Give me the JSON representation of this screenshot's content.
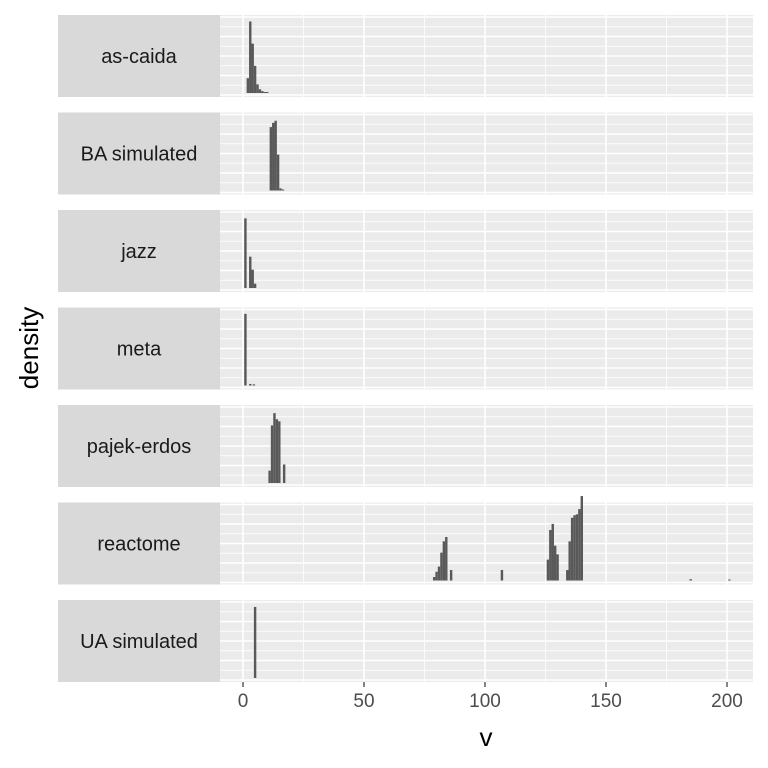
{
  "chart_data": {
    "type": "bar",
    "xlabel": "v",
    "ylabel": "density",
    "xlim": [
      -9,
      211
    ],
    "xticks": [
      0,
      50,
      100,
      150,
      200
    ],
    "panel_background": "#ebebeb",
    "strip_background": "#d9d9d9",
    "bar_color": "#595959",
    "facets": [
      {
        "label": "as-caida",
        "ymax": 0.6,
        "bins": [
          {
            "x": 2,
            "y": 0.12
          },
          {
            "x": 3,
            "y": 0.58
          },
          {
            "x": 4,
            "y": 0.4
          },
          {
            "x": 5,
            "y": 0.22
          },
          {
            "x": 6,
            "y": 0.07
          },
          {
            "x": 7,
            "y": 0.03
          },
          {
            "x": 8,
            "y": 0.015
          },
          {
            "x": 9,
            "y": 0.008
          },
          {
            "x": 10,
            "y": 0.005
          }
        ]
      },
      {
        "label": "BA simulated",
        "ymax": 0.35,
        "bins": [
          {
            "x": 11.5,
            "y": 0.3
          },
          {
            "x": 12.5,
            "y": 0.32
          },
          {
            "x": 13.5,
            "y": 0.33
          },
          {
            "x": 14.5,
            "y": 0.17
          },
          {
            "x": 15.5,
            "y": 0.01
          },
          {
            "x": 16.5,
            "y": 0.005
          }
        ]
      },
      {
        "label": "jazz",
        "ymax": 0.85,
        "bins": [
          {
            "x": 1,
            "y": 0.8
          },
          {
            "x": 3,
            "y": 0.36
          },
          {
            "x": 4,
            "y": 0.21
          },
          {
            "x": 5,
            "y": 0.05
          }
        ]
      },
      {
        "label": "meta",
        "ymax": 0.95,
        "bins": [
          {
            "x": 1,
            "y": 0.92
          },
          {
            "x": 3,
            "y": 0.02
          },
          {
            "x": 4.5,
            "y": 0.015
          }
        ]
      },
      {
        "label": "pajek-erdos",
        "ymax": 0.36,
        "bins": [
          {
            "x": 11,
            "y": 0.06
          },
          {
            "x": 12,
            "y": 0.28
          },
          {
            "x": 13,
            "y": 0.34
          },
          {
            "x": 14,
            "y": 0.31
          },
          {
            "x": 15,
            "y": 0.3
          },
          {
            "x": 17,
            "y": 0.09
          }
        ]
      },
      {
        "label": "reactome",
        "ymax": 0.085,
        "bins": [
          {
            "x": 79,
            "y": 0.004
          },
          {
            "x": 80,
            "y": 0.01
          },
          {
            "x": 81,
            "y": 0.016
          },
          {
            "x": 82,
            "y": 0.032
          },
          {
            "x": 83,
            "y": 0.045
          },
          {
            "x": 84,
            "y": 0.05
          },
          {
            "x": 86,
            "y": 0.012
          },
          {
            "x": 107,
            "y": 0.012
          },
          {
            "x": 126,
            "y": 0.024
          },
          {
            "x": 127,
            "y": 0.058
          },
          {
            "x": 128,
            "y": 0.065
          },
          {
            "x": 129,
            "y": 0.04
          },
          {
            "x": 130,
            "y": 0.03
          },
          {
            "x": 134,
            "y": 0.012
          },
          {
            "x": 135,
            "y": 0.045
          },
          {
            "x": 136,
            "y": 0.072
          },
          {
            "x": 137,
            "y": 0.075
          },
          {
            "x": 138,
            "y": 0.076
          },
          {
            "x": 139,
            "y": 0.082
          },
          {
            "x": 140,
            "y": 0.097
          },
          {
            "x": 185,
            "y": 0.0015
          },
          {
            "x": 201,
            "y": 0.001
          }
        ]
      },
      {
        "label": "UA simulated",
        "ymax": 1.0,
        "bins": [
          {
            "x": 5,
            "y": 0.96
          }
        ]
      }
    ]
  }
}
